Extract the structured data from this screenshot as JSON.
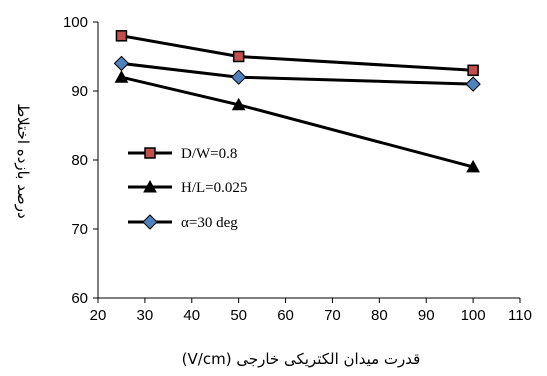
{
  "chart_data": {
    "type": "line",
    "xlabel": "قدرت میدان الکتریکی خارجی (V/cm)",
    "ylabel": "درصد بازده اختلاط",
    "xlim": [
      20,
      110
    ],
    "ylim": [
      60,
      100
    ],
    "x_ticks": [
      "20",
      "30",
      "40",
      "50",
      "60",
      "70",
      "80",
      "90",
      "100",
      "110"
    ],
    "y_ticks": [
      "60",
      "70",
      "80",
      "90",
      "100"
    ],
    "grid": false,
    "legend_position": "left-middle",
    "series": [
      {
        "name": "D/W=0.8",
        "marker": "square",
        "color": "#000000",
        "marker_fill": "#c0504d",
        "x": [
          25,
          50,
          100
        ],
        "y": [
          98,
          95,
          93
        ]
      },
      {
        "name": "H/L=0.025",
        "marker": "triangle",
        "color": "#000000",
        "marker_fill": "#000000",
        "x": [
          25,
          50,
          100
        ],
        "y": [
          92,
          88,
          79
        ]
      },
      {
        "name": "α=30 deg",
        "marker": "diamond",
        "color": "#000000",
        "marker_fill": "#4f81bd",
        "x": [
          25,
          50,
          100
        ],
        "y": [
          94,
          92,
          91
        ]
      }
    ]
  }
}
